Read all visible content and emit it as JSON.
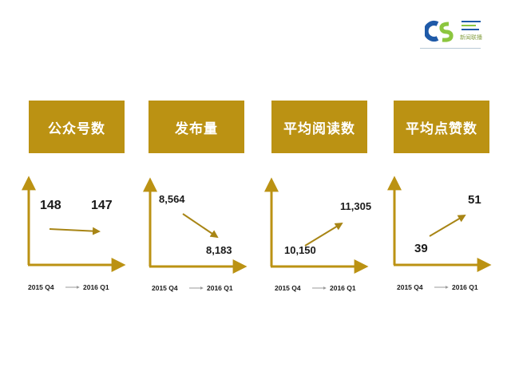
{
  "logo": {
    "brand_text": "新闻联播"
  },
  "colors": {
    "accent": "#bb9213",
    "arrow": "#a88515",
    "axis_arrow": "#999999"
  },
  "chart_data": [
    {
      "type": "line",
      "title": "公众号数",
      "categories": [
        "2015 Q4",
        "2016  Q1"
      ],
      "values": [
        148,
        147
      ],
      "value_labels": [
        "148",
        "147"
      ]
    },
    {
      "type": "line",
      "title": "发布量",
      "categories": [
        "2015 Q4",
        "2016  Q1"
      ],
      "values": [
        8564,
        8183
      ],
      "value_labels": [
        "8,564",
        "8,183"
      ]
    },
    {
      "type": "line",
      "title": "平均阅读数",
      "categories": [
        "2015 Q4",
        "2016  Q1"
      ],
      "values": [
        10150,
        11305
      ],
      "value_labels": [
        "10,150",
        "11,305"
      ]
    },
    {
      "type": "line",
      "title": "平均点赞数",
      "categories": [
        "2015 Q4",
        "2016  Q1"
      ],
      "values": [
        39,
        51
      ],
      "value_labels": [
        "39",
        "51"
      ]
    }
  ]
}
